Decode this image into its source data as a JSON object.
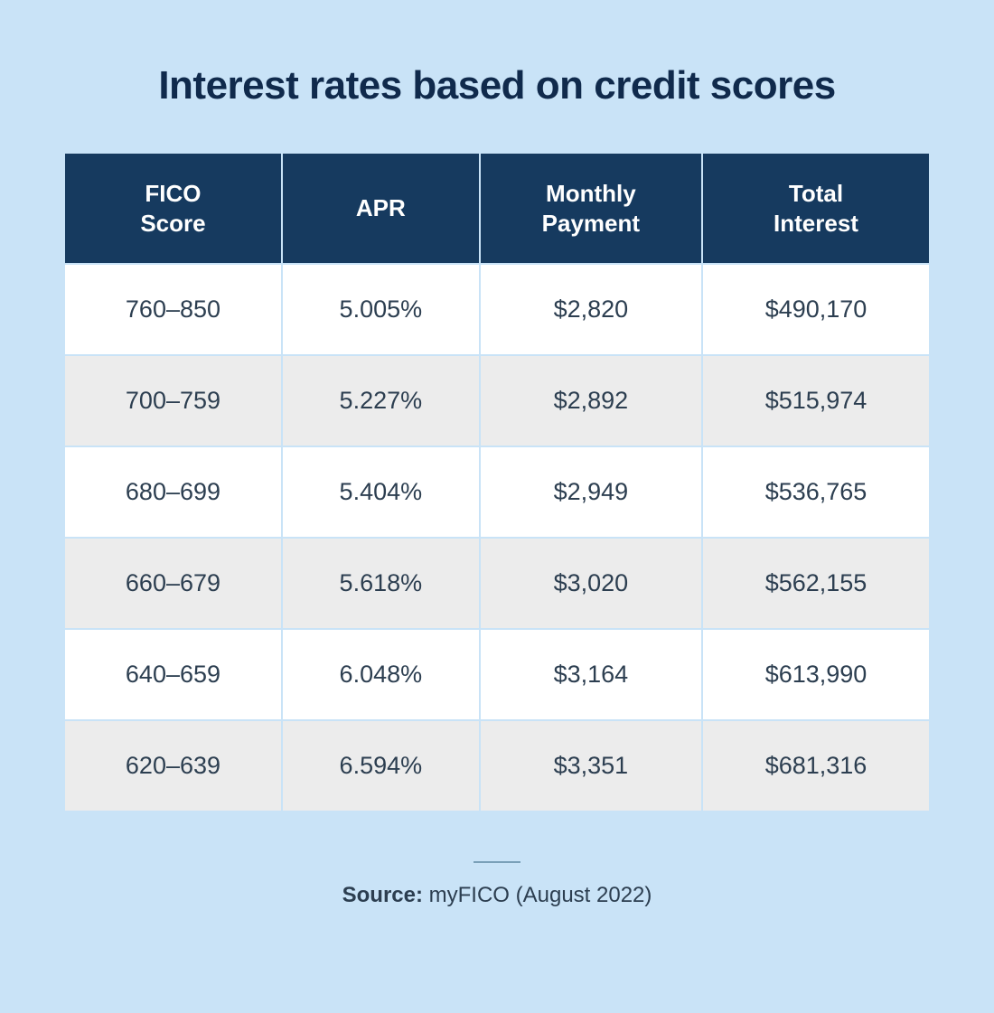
{
  "title": "Interest rates based on credit scores",
  "table": {
    "type": "table",
    "columns": [
      "FICO Score",
      "APR",
      "Monthly Payment",
      "Total Interest"
    ],
    "rows": [
      [
        "760–850",
        "5.005%",
        "$2,820",
        "$490,170"
      ],
      [
        "700–759",
        "5.227%",
        "$2,892",
        "$515,974"
      ],
      [
        "680–699",
        "5.404%",
        "$2,949",
        "$536,765"
      ],
      [
        "660–679",
        "5.618%",
        "$3,020",
        "$562,155"
      ],
      [
        "640–659",
        "6.048%",
        "$3,164",
        "$613,990"
      ],
      [
        "620–639",
        "6.594%",
        "$3,351",
        "$681,316"
      ]
    ],
    "header_bg": "#163a5f",
    "header_text_color": "#ffffff",
    "row_odd_bg": "#ffffff",
    "row_even_bg": "#ececec",
    "cell_border_color": "#c9e3f7",
    "text_color": "#2c3e50",
    "header_fontsize": 26,
    "cell_fontsize": 27
  },
  "source": {
    "label": "Source:",
    "value": "myFICO (August 2022)"
  },
  "background_color": "#c9e3f7",
  "title_color": "#102a4c",
  "title_fontsize": 44,
  "divider_color": "#7aa0b8"
}
